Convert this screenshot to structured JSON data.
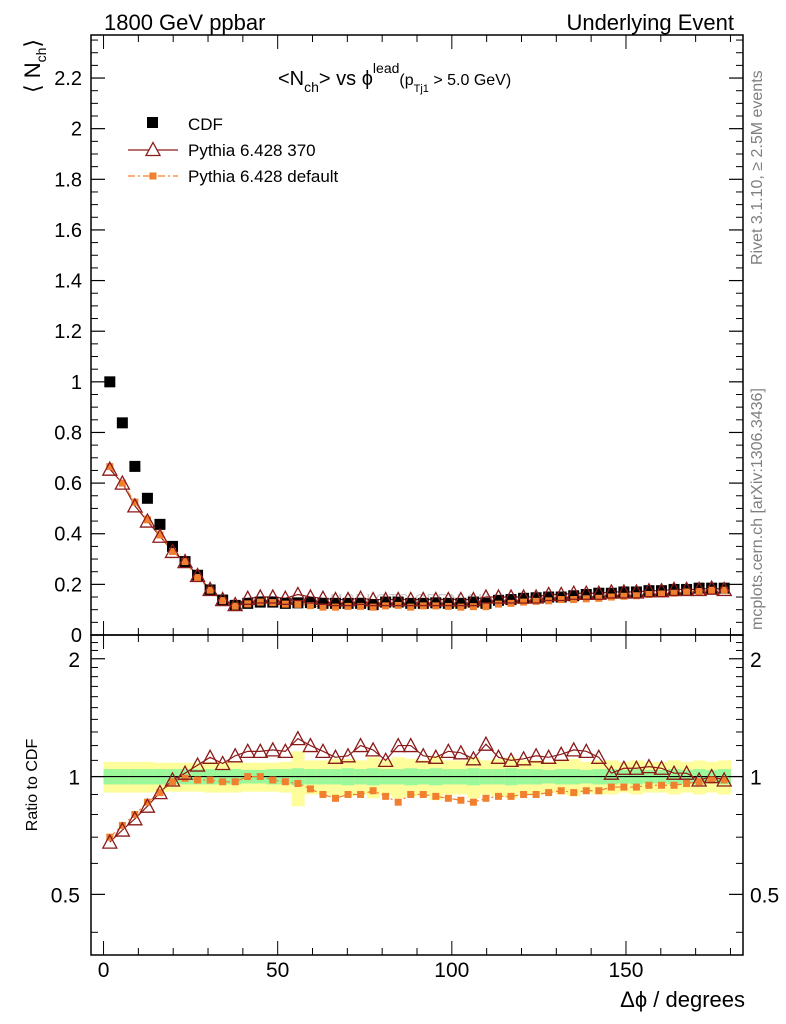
{
  "header": {
    "left": "1800 GeV ppbar",
    "right": "Underlying Event"
  },
  "side_text": {
    "rivet": "Rivet 3.1.10, ≥ 2.5M events",
    "mcplots": "mcplots.cern.ch [arXiv:1306.3436]"
  },
  "watermark": "MCPLOTS.CERN.CH",
  "title": {
    "prefix": "<N",
    "sub1": "ch",
    "mid": "> vs ϕ",
    "sup": "lead",
    "open": "(p",
    "sub2": "Tj1",
    "close": " > 5.0 GeV)"
  },
  "ylabel": {
    "main": "⟨ N",
    "sub": "ch",
    "end": "⟩"
  },
  "ratio_ylabel": "Ratio to CDF",
  "xlabel": "Δϕ / degrees",
  "legend": [
    {
      "label": "CDF",
      "marker": "square-filled",
      "color": "#000000"
    },
    {
      "label": "Pythia 6.428 370",
      "marker": "triangle-open",
      "color": "#8b1a1a"
    },
    {
      "label": "Pythia 6.428 default",
      "marker": "square-filled-dashdot",
      "color": "#f08030"
    }
  ],
  "colors": {
    "band_inner": "#9af79a",
    "band_outer": "#fdfd9b",
    "cdf": "#000000",
    "p370": "#8b1a1a",
    "pdef": "#f08030"
  },
  "chart_data": [
    {
      "type": "scatter",
      "name": "main",
      "xlim": [
        -3.6,
        183.6
      ],
      "ylim": [
        0,
        2.37
      ],
      "yticks": [
        0,
        0.2,
        0.4,
        0.6,
        0.8,
        1,
        1.2,
        1.4,
        1.6,
        1.8,
        2,
        2.2
      ],
      "ytick_labels": [
        "0",
        "0.2",
        "0.4",
        "0.6",
        "0.8",
        "1",
        "1.2",
        "1.4",
        "1.6",
        "1.8",
        "2",
        "2.2"
      ],
      "x": [
        1.8,
        5.4,
        9,
        12.6,
        16.2,
        19.8,
        23.4,
        27,
        30.6,
        34.2,
        37.8,
        41.4,
        45,
        48.6,
        52.2,
        55.8,
        59.4,
        63,
        66.6,
        70.2,
        73.8,
        77.4,
        81,
        84.6,
        88.2,
        91.8,
        95.4,
        99,
        102.6,
        106.2,
        109.8,
        113.4,
        117,
        120.6,
        124.2,
        127.8,
        131.4,
        135,
        138.6,
        142.2,
        145.8,
        149.4,
        153,
        156.6,
        160.2,
        163.8,
        167.4,
        171,
        174.6,
        178.2
      ],
      "series": [
        {
          "name": "CDF",
          "values": [
            1.0,
            0.838,
            0.666,
            0.54,
            0.437,
            0.35,
            0.29,
            0.236,
            0.178,
            0.138,
            0.117,
            0.125,
            0.13,
            0.13,
            0.125,
            0.127,
            0.128,
            0.125,
            0.125,
            0.125,
            0.125,
            0.12,
            0.13,
            0.13,
            0.125,
            0.125,
            0.127,
            0.125,
            0.125,
            0.13,
            0.125,
            0.137,
            0.14,
            0.145,
            0.147,
            0.15,
            0.15,
            0.155,
            0.16,
            0.165,
            0.165,
            0.17,
            0.17,
            0.175,
            0.175,
            0.18,
            0.18,
            0.185,
            0.185,
            0.185
          ]
        },
        {
          "name": "Pythia 6.428 370",
          "values": [
            0.655,
            0.6,
            0.51,
            0.45,
            0.39,
            0.33,
            0.29,
            0.235,
            0.18,
            0.14,
            0.12,
            0.145,
            0.15,
            0.15,
            0.145,
            0.16,
            0.15,
            0.145,
            0.14,
            0.14,
            0.145,
            0.14,
            0.14,
            0.14,
            0.14,
            0.14,
            0.14,
            0.14,
            0.14,
            0.14,
            0.15,
            0.15,
            0.15,
            0.15,
            0.15,
            0.16,
            0.16,
            0.165,
            0.165,
            0.165,
            0.17,
            0.17,
            0.17,
            0.175,
            0.175,
            0.18,
            0.18,
            0.18,
            0.185,
            0.18
          ]
        },
        {
          "name": "Pythia 6.428 default",
          "values": [
            0.665,
            0.6,
            0.525,
            0.455,
            0.395,
            0.33,
            0.29,
            0.227,
            0.177,
            0.136,
            0.114,
            0.123,
            0.13,
            0.128,
            0.122,
            0.121,
            0.116,
            0.11,
            0.11,
            0.113,
            0.113,
            0.11,
            0.115,
            0.117,
            0.11,
            0.115,
            0.115,
            0.113,
            0.11,
            0.112,
            0.112,
            0.122,
            0.125,
            0.13,
            0.133,
            0.135,
            0.14,
            0.14,
            0.143,
            0.145,
            0.15,
            0.153,
            0.155,
            0.16,
            0.162,
            0.165,
            0.17,
            0.172,
            0.177,
            0.177
          ]
        }
      ]
    },
    {
      "type": "scatter",
      "name": "ratio",
      "xlim": [
        -3.6,
        183.6
      ],
      "ylim": [
        0.35,
        2.3
      ],
      "yticks": [
        0.5,
        1,
        2
      ],
      "ytick_labels": [
        "0.5",
        "1",
        "2"
      ],
      "xticks": [
        0,
        50,
        100,
        150
      ],
      "xtick_labels": [
        "0",
        "50",
        "100",
        "150"
      ],
      "x": [
        1.8,
        5.4,
        9,
        12.6,
        16.2,
        19.8,
        23.4,
        27,
        30.6,
        34.2,
        37.8,
        41.4,
        45,
        48.6,
        52.2,
        55.8,
        59.4,
        63,
        66.6,
        70.2,
        73.8,
        77.4,
        81,
        84.6,
        88.2,
        91.8,
        95.4,
        99,
        102.6,
        106.2,
        109.8,
        113.4,
        117,
        120.6,
        124.2,
        127.8,
        131.4,
        135,
        138.6,
        142.2,
        145.8,
        149.4,
        153,
        156.6,
        160.2,
        163.8,
        167.4,
        171,
        174.6,
        178.2
      ],
      "band_inner": [
        0.045,
        0.045,
        0.045,
        0.045,
        0.045,
        0.045,
        0.045,
        0.045,
        0.045,
        0.045,
        0.045,
        0.04,
        0.04,
        0.045,
        0.045,
        0.05,
        0.045,
        0.045,
        0.045,
        0.05,
        0.045,
        0.05,
        0.045,
        0.045,
        0.05,
        0.045,
        0.05,
        0.045,
        0.045,
        0.05,
        0.045,
        0.045,
        0.05,
        0.045,
        0.045,
        0.04,
        0.045,
        0.045,
        0.04,
        0.045,
        0.045,
        0.04,
        0.045,
        0.04,
        0.04,
        0.045,
        0.04,
        0.045,
        0.04,
        0.045
      ],
      "band_outer": [
        0.09,
        0.09,
        0.09,
        0.09,
        0.085,
        0.085,
        0.085,
        0.085,
        0.09,
        0.09,
        0.09,
        0.085,
        0.085,
        0.085,
        0.09,
        0.16,
        0.1,
        0.1,
        0.11,
        0.11,
        0.1,
        0.12,
        0.1,
        0.12,
        0.11,
        0.1,
        0.13,
        0.1,
        0.1,
        0.12,
        0.1,
        0.11,
        0.12,
        0.1,
        0.1,
        0.09,
        0.1,
        0.11,
        0.09,
        0.1,
        0.1,
        0.09,
        0.1,
        0.09,
        0.09,
        0.1,
        0.09,
        0.1,
        0.09,
        0.1
      ],
      "series": [
        {
          "name": "Pythia 6.428 370",
          "values": [
            0.68,
            0.73,
            0.78,
            0.84,
            0.91,
            0.98,
            1.02,
            1.07,
            1.12,
            1.08,
            1.13,
            1.16,
            1.16,
            1.17,
            1.16,
            1.25,
            1.2,
            1.16,
            1.12,
            1.13,
            1.2,
            1.17,
            1.1,
            1.2,
            1.2,
            1.13,
            1.12,
            1.16,
            1.15,
            1.11,
            1.21,
            1.12,
            1.1,
            1.11,
            1.13,
            1.12,
            1.14,
            1.17,
            1.16,
            1.12,
            1.02,
            1.05,
            1.05,
            1.06,
            1.05,
            1.02,
            1.02,
            0.98,
            1.0,
            0.98
          ]
        },
        {
          "name": "Pythia 6.428 default",
          "values": [
            0.7,
            0.75,
            0.8,
            0.86,
            0.91,
            0.97,
            0.99,
            0.98,
            0.98,
            0.97,
            0.97,
            1.0,
            1.0,
            0.98,
            0.97,
            0.96,
            0.93,
            0.9,
            0.88,
            0.9,
            0.9,
            0.92,
            0.89,
            0.86,
            0.9,
            0.9,
            0.89,
            0.88,
            0.87,
            0.86,
            0.88,
            0.89,
            0.89,
            0.9,
            0.9,
            0.91,
            0.92,
            0.91,
            0.92,
            0.92,
            0.94,
            0.94,
            0.94,
            0.95,
            0.95,
            0.95,
            0.96,
            0.97,
            0.98,
            0.98
          ]
        }
      ]
    }
  ]
}
